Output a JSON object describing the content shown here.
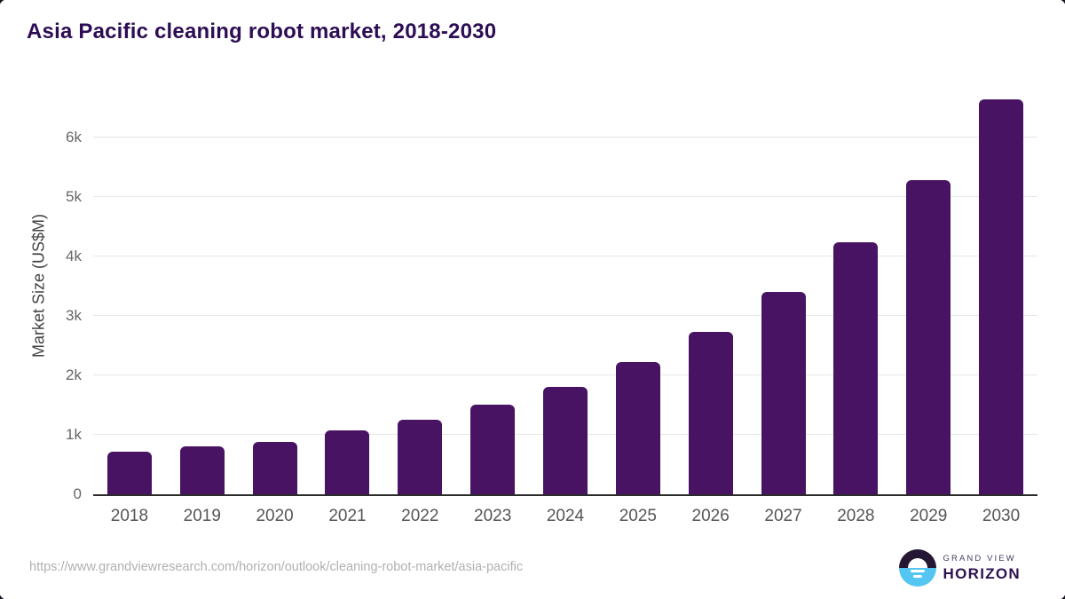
{
  "title": "Asia Pacific cleaning robot market, 2018-2030",
  "chart_data": {
    "type": "bar",
    "title": "Asia Pacific cleaning robot market, 2018-2030",
    "categories": [
      "2018",
      "2019",
      "2020",
      "2021",
      "2022",
      "2023",
      "2024",
      "2025",
      "2026",
      "2027",
      "2028",
      "2029",
      "2030"
    ],
    "values": [
      720,
      800,
      885,
      1080,
      1255,
      1505,
      1805,
      2220,
      2740,
      3400,
      4245,
      5290,
      6650
    ],
    "xlabel": "",
    "ylabel": "Market Size (US$M)",
    "ylim": [
      0,
      6900
    ],
    "y_ticks": [
      {
        "label": "0",
        "value": 0
      },
      {
        "label": "1k",
        "value": 1000
      },
      {
        "label": "2k",
        "value": 2000
      },
      {
        "label": "3k",
        "value": 3000
      },
      {
        "label": "4k",
        "value": 4000
      },
      {
        "label": "5k",
        "value": 5000
      },
      {
        "label": "6k",
        "value": 6000
      }
    ],
    "grid": "horizontal",
    "legend": "none",
    "bar_color": "#471362"
  },
  "colors": {
    "title": "#2d0d54",
    "bar": "#471362",
    "gridline": "#e7e7e7",
    "axis_line": "#2b2b2b",
    "tick_label": "#666666",
    "logo_dark": "#251733",
    "logo_blue": "#55c6f1"
  },
  "footer": {
    "source_url": "https://www.grandviewresearch.com/horizon/outlook/cleaning-robot-market/asia-pacific",
    "logo": {
      "top": "GRAND VIEW",
      "bottom": "HORIZON"
    }
  }
}
